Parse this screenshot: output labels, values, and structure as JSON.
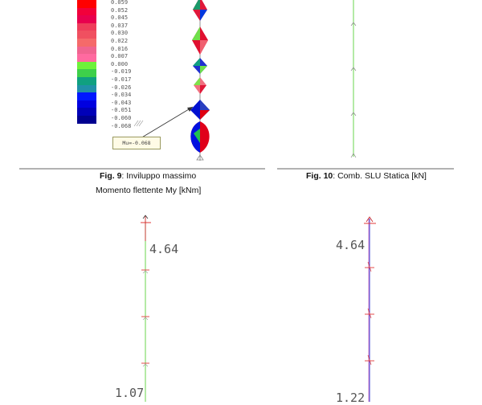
{
  "legend": {
    "entries": [
      {
        "label": "0.059",
        "color": "#ff0000"
      },
      {
        "label": "0.052",
        "color": "#f2003a"
      },
      {
        "label": "0.045",
        "color": "#e8004e"
      },
      {
        "label": "0.037",
        "color": "#ef3d5b"
      },
      {
        "label": "0.030",
        "color": "#f05060"
      },
      {
        "label": "0.022",
        "color": "#f56a6a"
      },
      {
        "label": "0.016",
        "color": "#f06490"
      },
      {
        "label": "0.007",
        "color": "#ff6aa0"
      },
      {
        "label": "0.000",
        "color": "#6ef23a"
      },
      {
        "label": "-0.019",
        "color": "#3ed04a"
      },
      {
        "label": "-0.017",
        "color": "#10a080"
      },
      {
        "label": "-0.026",
        "color": "#2090a8"
      },
      {
        "label": "-0.034",
        "color": "#0018ff"
      },
      {
        "label": "-0.043",
        "color": "#0000e0"
      },
      {
        "label": "-0.051",
        "color": "#0000b8"
      },
      {
        "label": "-0.060",
        "color": "#000090"
      },
      {
        "label": "-0.068",
        "color": ""
      }
    ]
  },
  "callout": {
    "label": "Mu=-0.068"
  },
  "captions": {
    "fig9_number": "Fig. 9",
    "fig9_text": ": Inviluppo massimo",
    "fig9_line2": "Momento flettente My [kNm]",
    "fig10_number": "Fig. 10",
    "fig10_text": ": Comb. SLU Statica [kN]"
  },
  "bottom_left": {
    "top_value": "4.64",
    "bottom_value": "1.07"
  },
  "bottom_right": {
    "top_value": "4.64",
    "bottom_value": "1.22"
  }
}
